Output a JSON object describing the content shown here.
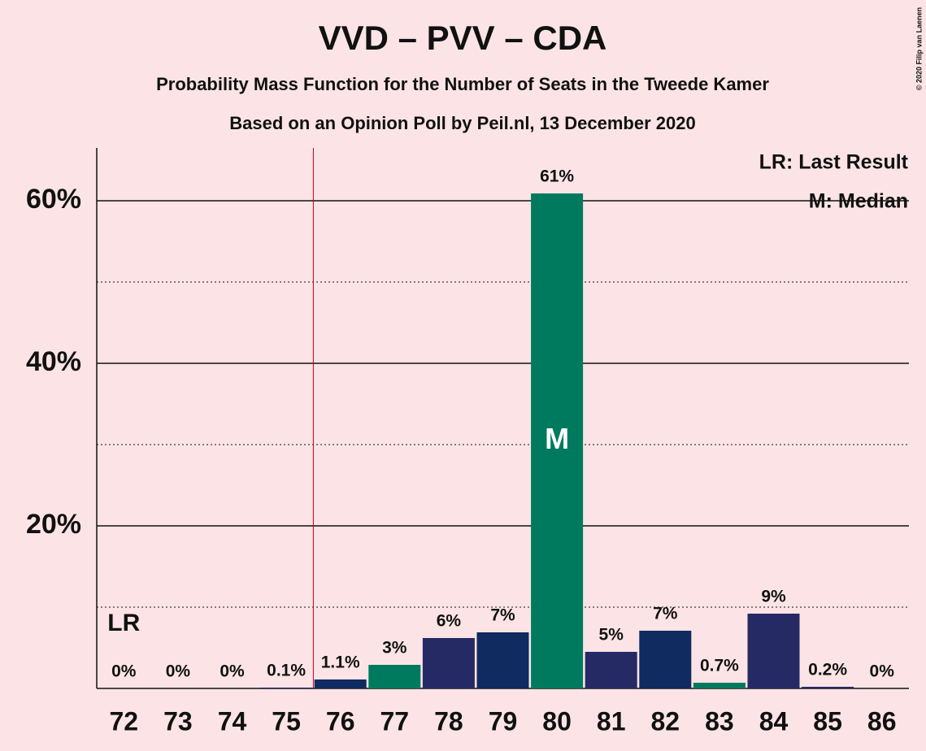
{
  "chart_data": {
    "type": "bar",
    "title": "VVD – PVV – CDA",
    "subtitle": "Probability Mass Function for the Number of Seats in the Tweede Kamer",
    "subtitle2": "Based on an Opinion Poll by Peil.nl, 13 December 2020",
    "categories": [
      72,
      73,
      74,
      75,
      76,
      77,
      78,
      79,
      80,
      81,
      82,
      83,
      84,
      85,
      86
    ],
    "values": [
      0,
      0,
      0,
      0.1,
      1.1,
      2.9,
      6.2,
      6.9,
      60.9,
      4.5,
      7.1,
      0.7,
      9.2,
      0.2,
      0
    ],
    "value_labels": [
      "0%",
      "0%",
      "0%",
      "0.1%",
      "1.1%",
      "3%",
      "6%",
      "7%",
      "61%",
      "5%",
      "7%",
      "0.7%",
      "9%",
      "0.2%",
      "0%"
    ],
    "colors": [
      "#262a64",
      "#262a64",
      "#262a64",
      "#262a64",
      "#0f2b5f",
      "#007a5e",
      "#262a64",
      "#0f2b5f",
      "#007a5e",
      "#262a64",
      "#0f2b5f",
      "#007a5e",
      "#262a64",
      "#262a64",
      "#262a64"
    ],
    "ylim": [
      0,
      66.5
    ],
    "yticks": [
      {
        "value": 20,
        "label": "20%"
      },
      {
        "value": 40,
        "label": "40%"
      },
      {
        "value": 60,
        "label": "60%"
      }
    ],
    "minor_yticks": [
      10,
      30,
      50
    ],
    "last_result_x": 75.5,
    "last_result_label": "LR",
    "median_category": 80,
    "median_label": "M",
    "legend": [
      "LR: Last Result",
      "M: Median"
    ],
    "copyright": "© 2020 Filip van Laenen"
  }
}
